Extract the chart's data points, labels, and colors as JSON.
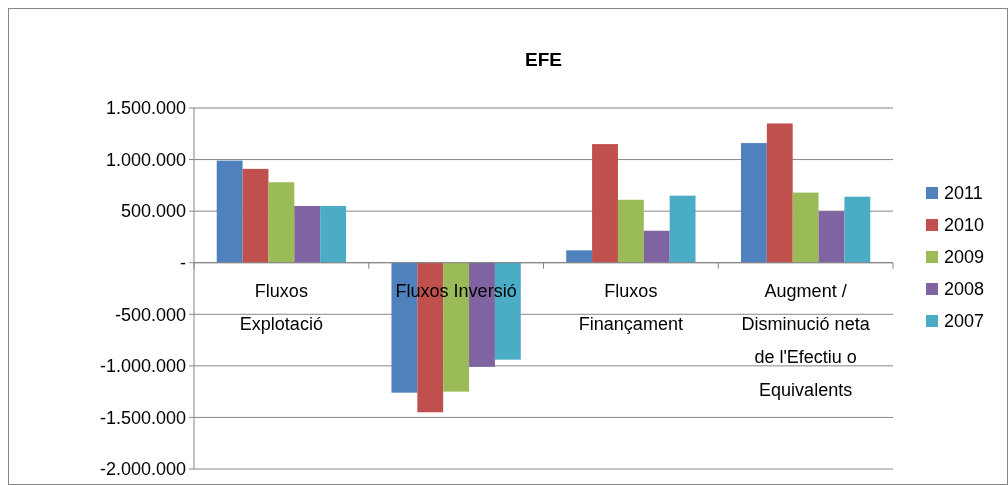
{
  "chart_data": {
    "type": "bar",
    "title": "EFE",
    "categories": [
      "Fluxos Explotació",
      "Fluxos Inversió",
      "Fluxos Finançament",
      "Augment / Disminució neta de l'Efectiu o Equivalents"
    ],
    "series": [
      {
        "name": "2011",
        "color": "#4f81bd",
        "values": [
          990000,
          -1260000,
          120000,
          1160000
        ]
      },
      {
        "name": "2010",
        "color": "#c0504d",
        "values": [
          910000,
          -1450000,
          1150000,
          1350000
        ]
      },
      {
        "name": "2009",
        "color": "#9bbb59",
        "values": [
          780000,
          -1250000,
          610000,
          680000
        ]
      },
      {
        "name": "2008",
        "color": "#8064a2",
        "values": [
          550000,
          -1010000,
          310000,
          500000
        ]
      },
      {
        "name": "2007",
        "color": "#4bacc6",
        "values": [
          550000,
          -940000,
          650000,
          640000
        ]
      }
    ],
    "ylim": [
      -2000000,
      1500000
    ],
    "yticks": [
      {
        "value": -2000000,
        "label": "-2.000.000"
      },
      {
        "value": -1500000,
        "label": "-1.500.000"
      },
      {
        "value": -1000000,
        "label": "-1.000.000"
      },
      {
        "value": -500000,
        "label": "-500.000"
      },
      {
        "value": 0,
        "label": "-"
      },
      {
        "value": 500000,
        "label": "500.000"
      },
      {
        "value": 1000000,
        "label": "1.000.000"
      },
      {
        "value": 1500000,
        "label": "1.500.000"
      }
    ],
    "grid": "y",
    "legend": "right"
  }
}
